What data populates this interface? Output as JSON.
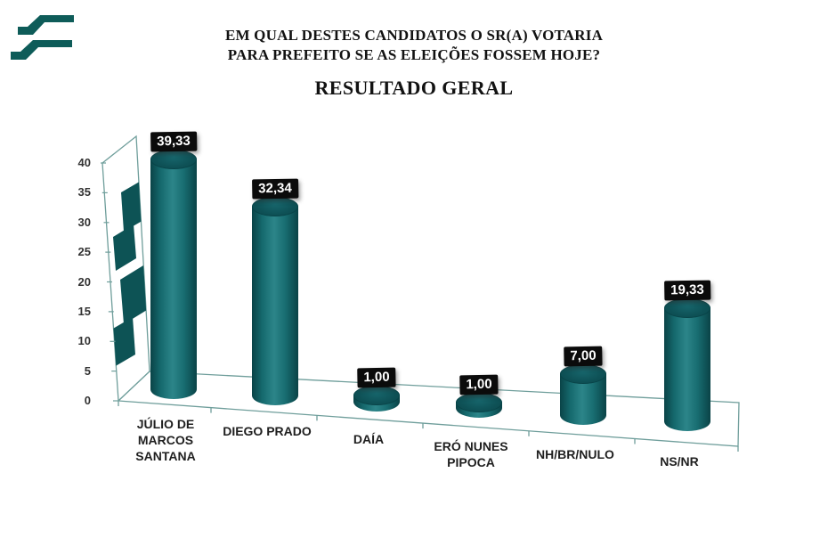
{
  "brand": {
    "logo": "two-band-slash-logo",
    "logo_color": "#0e5c59"
  },
  "title": {
    "line1": "EM QUAL DESTES CANDIDATOS O SR(A) VOTARIA",
    "line2": "PARA PREFEITO SE AS ELEIÇÕES FOSSEM HOJE?",
    "subtitle": "RESULTADO GERAL"
  },
  "chart_data": {
    "type": "bar",
    "variant": "3d-cylinder",
    "categories": [
      "JÚLIO DE MARCOS SANTANA",
      "DIEGO PRADO",
      "DAÍA",
      "ERÓ NUNES PIPOCA",
      "NH/BR/NULO",
      "NS/NR"
    ],
    "values": [
      39.33,
      32.34,
      1.0,
      1.0,
      7.0,
      19.33
    ],
    "value_labels": [
      "39,33",
      "32,34",
      "1,00",
      "1,00",
      "7,00",
      "19,33"
    ],
    "y_ticks": [
      0,
      5,
      10,
      15,
      20,
      25,
      30,
      35,
      40
    ],
    "ylim": [
      0,
      40
    ],
    "xlabel": "",
    "ylabel": "",
    "grid": false,
    "legend": false,
    "colors": {
      "bar": "#15696d",
      "bar_top": "#0e5156",
      "value_label_bg": "#0b0b0b",
      "value_label_text": "#ffffff",
      "axis_line": "#6f9e9b",
      "watermark": "#0d5355"
    }
  }
}
